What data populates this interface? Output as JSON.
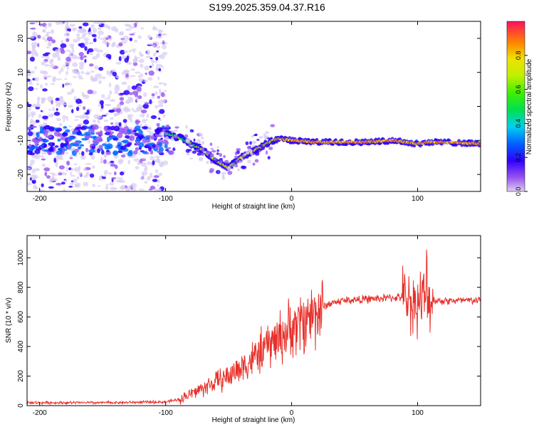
{
  "title": "S199.2025.359.04.37.R16",
  "colors": {
    "snr_line": "#e8302a",
    "spectro_strong": "#6a1cf0",
    "spectro_weak": "#c7a6f5",
    "colormap": [
      "#d9ccf2",
      "#9b5cf2",
      "#2a00ff",
      "#0070ff",
      "#00e0e0",
      "#00e050",
      "#a0f000",
      "#f0f000",
      "#ff9000",
      "#ff1060"
    ]
  },
  "chart_data": [
    {
      "type": "heatmap",
      "title": "",
      "xlabel": "Height of straight line (km)",
      "ylabel": "Frequency (Hz)",
      "xlim": [
        -210,
        150
      ],
      "ylim": [
        -25,
        25
      ],
      "xticks": [
        -200,
        -100,
        0,
        100
      ],
      "yticks": [
        -20,
        -10,
        0,
        10,
        20
      ],
      "colorbar": {
        "label": "Normalized spectral amplitude",
        "range": [
          0,
          1
        ],
        "ticks": [
          "0.0",
          "0.2",
          "0.4",
          "0.6",
          "0.8"
        ]
      },
      "ridge": {
        "description": "dominant spectral line",
        "x": [
          -100,
          -90,
          -80,
          -70,
          -60,
          -50,
          -40,
          -30,
          -20,
          -15,
          -10,
          0,
          20,
          40,
          60,
          80,
          90,
          100,
          110,
          120,
          150
        ],
        "y": [
          -8,
          -9,
          -11,
          -13,
          -16,
          -18,
          -15,
          -13,
          -11,
          -10,
          -9.5,
          -10,
          -10.5,
          -10.5,
          -10.5,
          -10,
          -10.5,
          -11,
          -10.5,
          -10.5,
          -11
        ]
      }
    },
    {
      "type": "line",
      "title": "",
      "xlabel": "Height of straight line (km)",
      "ylabel": "SNR (10 * v/v)",
      "xlim": [
        -210,
        150
      ],
      "ylim": [
        0,
        1150
      ],
      "xticks": [
        -200,
        -100,
        0,
        100
      ],
      "yticks": [
        0,
        200,
        400,
        600,
        800,
        1000
      ],
      "series": [
        {
          "name": "SNR",
          "x": [
            -210,
            -150,
            -100,
            -90,
            -80,
            -70,
            -60,
            -50,
            -40,
            -30,
            -20,
            -10,
            0,
            10,
            20,
            30,
            40,
            60,
            80,
            90,
            95,
            100,
            105,
            110,
            115,
            120,
            150
          ],
          "y": [
            20,
            20,
            25,
            40,
            80,
            120,
            160,
            200,
            260,
            320,
            400,
            460,
            520,
            580,
            640,
            690,
            710,
            720,
            730,
            735,
            700,
            700,
            720,
            720,
            710,
            710,
            710
          ]
        }
      ]
    }
  ]
}
